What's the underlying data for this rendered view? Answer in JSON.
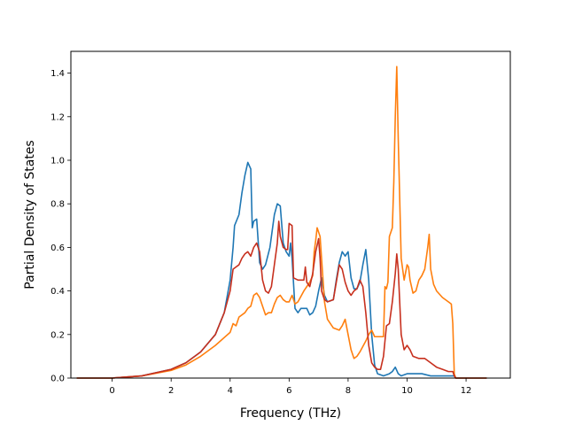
{
  "chart_data": {
    "type": "line",
    "title": "",
    "xlabel": "Frequency (THz)",
    "ylabel": "Partial Density of States",
    "xlim": [
      -1.4,
      13.5
    ],
    "ylim": [
      0.0,
      1.5
    ],
    "xticks": [
      0,
      2,
      4,
      6,
      8,
      10,
      12
    ],
    "yticks": [
      0.0,
      0.2,
      0.4,
      0.6,
      0.8,
      1.0,
      1.2,
      1.4
    ],
    "grid": false,
    "legend": "none",
    "series": [
      {
        "color": "#1f77b4",
        "points": [
          [
            -1.2,
            0
          ],
          [
            0,
            0
          ],
          [
            1,
            0.01
          ],
          [
            2,
            0.04
          ],
          [
            2.5,
            0.07
          ],
          [
            3,
            0.12
          ],
          [
            3.5,
            0.2
          ],
          [
            3.8,
            0.3
          ],
          [
            4.0,
            0.45
          ],
          [
            4.1,
            0.6
          ],
          [
            4.15,
            0.7
          ],
          [
            4.3,
            0.75
          ],
          [
            4.4,
            0.85
          ],
          [
            4.5,
            0.93
          ],
          [
            4.6,
            0.99
          ],
          [
            4.7,
            0.96
          ],
          [
            4.75,
            0.69
          ],
          [
            4.8,
            0.72
          ],
          [
            4.9,
            0.73
          ],
          [
            5.0,
            0.53
          ],
          [
            5.1,
            0.5
          ],
          [
            5.2,
            0.52
          ],
          [
            5.35,
            0.6
          ],
          [
            5.5,
            0.75
          ],
          [
            5.6,
            0.8
          ],
          [
            5.7,
            0.79
          ],
          [
            5.8,
            0.62
          ],
          [
            5.9,
            0.58
          ],
          [
            6.0,
            0.56
          ],
          [
            6.05,
            0.62
          ],
          [
            6.1,
            0.55
          ],
          [
            6.2,
            0.32
          ],
          [
            6.3,
            0.3
          ],
          [
            6.4,
            0.32
          ],
          [
            6.6,
            0.32
          ],
          [
            6.7,
            0.29
          ],
          [
            6.8,
            0.3
          ],
          [
            6.9,
            0.33
          ],
          [
            7.0,
            0.4
          ],
          [
            7.1,
            0.46
          ],
          [
            7.2,
            0.38
          ],
          [
            7.3,
            0.35
          ],
          [
            7.5,
            0.36
          ],
          [
            7.6,
            0.45
          ],
          [
            7.7,
            0.53
          ],
          [
            7.8,
            0.58
          ],
          [
            7.9,
            0.56
          ],
          [
            8.0,
            0.58
          ],
          [
            8.1,
            0.46
          ],
          [
            8.2,
            0.41
          ],
          [
            8.3,
            0.41
          ],
          [
            8.4,
            0.44
          ],
          [
            8.5,
            0.52
          ],
          [
            8.6,
            0.59
          ],
          [
            8.7,
            0.45
          ],
          [
            8.8,
            0.2
          ],
          [
            8.9,
            0.06
          ],
          [
            9.0,
            0.02
          ],
          [
            9.2,
            0.01
          ],
          [
            9.4,
            0.02
          ],
          [
            9.5,
            0.03
          ],
          [
            9.6,
            0.05
          ],
          [
            9.7,
            0.02
          ],
          [
            9.8,
            0.01
          ],
          [
            10.0,
            0.02
          ],
          [
            10.2,
            0.02
          ],
          [
            10.5,
            0.02
          ],
          [
            10.8,
            0.01
          ],
          [
            11.0,
            0.01
          ],
          [
            11.2,
            0.01
          ],
          [
            11.6,
            0.01
          ],
          [
            11.65,
            0
          ],
          [
            12.7,
            0
          ]
        ]
      },
      {
        "color": "#ff7f0e",
        "points": [
          [
            -1.2,
            0
          ],
          [
            0,
            0
          ],
          [
            1,
            0.01
          ],
          [
            2,
            0.035
          ],
          [
            2.5,
            0.06
          ],
          [
            3,
            0.1
          ],
          [
            3.5,
            0.15
          ],
          [
            4.0,
            0.21
          ],
          [
            4.1,
            0.25
          ],
          [
            4.2,
            0.24
          ],
          [
            4.3,
            0.28
          ],
          [
            4.5,
            0.3
          ],
          [
            4.6,
            0.32
          ],
          [
            4.7,
            0.33
          ],
          [
            4.8,
            0.38
          ],
          [
            4.9,
            0.39
          ],
          [
            5.0,
            0.37
          ],
          [
            5.1,
            0.33
          ],
          [
            5.2,
            0.29
          ],
          [
            5.3,
            0.3
          ],
          [
            5.4,
            0.3
          ],
          [
            5.5,
            0.34
          ],
          [
            5.6,
            0.37
          ],
          [
            5.7,
            0.38
          ],
          [
            5.8,
            0.36
          ],
          [
            5.9,
            0.35
          ],
          [
            6.0,
            0.35
          ],
          [
            6.1,
            0.38
          ],
          [
            6.2,
            0.34
          ],
          [
            6.3,
            0.35
          ],
          [
            6.5,
            0.4
          ],
          [
            6.7,
            0.44
          ],
          [
            6.8,
            0.47
          ],
          [
            6.85,
            0.58
          ],
          [
            6.9,
            0.63
          ],
          [
            6.95,
            0.69
          ],
          [
            7.05,
            0.65
          ],
          [
            7.1,
            0.55
          ],
          [
            7.2,
            0.35
          ],
          [
            7.3,
            0.27
          ],
          [
            7.5,
            0.23
          ],
          [
            7.7,
            0.22
          ],
          [
            7.8,
            0.24
          ],
          [
            7.9,
            0.27
          ],
          [
            8.0,
            0.2
          ],
          [
            8.1,
            0.13
          ],
          [
            8.2,
            0.09
          ],
          [
            8.3,
            0.1
          ],
          [
            8.4,
            0.12
          ],
          [
            8.6,
            0.17
          ],
          [
            8.7,
            0.2
          ],
          [
            8.8,
            0.22
          ],
          [
            8.9,
            0.19
          ],
          [
            9.0,
            0.19
          ],
          [
            9.1,
            0.19
          ],
          [
            9.2,
            0.19
          ],
          [
            9.25,
            0.42
          ],
          [
            9.3,
            0.41
          ],
          [
            9.35,
            0.44
          ],
          [
            9.4,
            0.65
          ],
          [
            9.5,
            0.69
          ],
          [
            9.55,
            0.9
          ],
          [
            9.6,
            1.2
          ],
          [
            9.65,
            1.43
          ],
          [
            9.7,
            1.1
          ],
          [
            9.8,
            0.55
          ],
          [
            9.9,
            0.45
          ],
          [
            10.0,
            0.52
          ],
          [
            10.05,
            0.51
          ],
          [
            10.1,
            0.45
          ],
          [
            10.2,
            0.39
          ],
          [
            10.3,
            0.4
          ],
          [
            10.4,
            0.45
          ],
          [
            10.5,
            0.47
          ],
          [
            10.6,
            0.5
          ],
          [
            10.7,
            0.6
          ],
          [
            10.75,
            0.66
          ],
          [
            10.8,
            0.5
          ],
          [
            10.9,
            0.43
          ],
          [
            11.0,
            0.4
          ],
          [
            11.2,
            0.37
          ],
          [
            11.4,
            0.35
          ],
          [
            11.5,
            0.34
          ],
          [
            11.55,
            0.25
          ],
          [
            11.6,
            0.02
          ],
          [
            11.65,
            0
          ],
          [
            12.7,
            0
          ]
        ]
      },
      {
        "color": "#c7301e",
        "points": [
          [
            -1.2,
            0
          ],
          [
            0,
            0
          ],
          [
            1,
            0.01
          ],
          [
            2,
            0.04
          ],
          [
            2.5,
            0.07
          ],
          [
            3,
            0.12
          ],
          [
            3.5,
            0.2
          ],
          [
            3.8,
            0.3
          ],
          [
            4.0,
            0.4
          ],
          [
            4.1,
            0.5
          ],
          [
            4.2,
            0.51
          ],
          [
            4.3,
            0.52
          ],
          [
            4.4,
            0.55
          ],
          [
            4.5,
            0.57
          ],
          [
            4.6,
            0.58
          ],
          [
            4.7,
            0.56
          ],
          [
            4.8,
            0.6
          ],
          [
            4.9,
            0.62
          ],
          [
            5.0,
            0.58
          ],
          [
            5.1,
            0.45
          ],
          [
            5.2,
            0.4
          ],
          [
            5.3,
            0.39
          ],
          [
            5.4,
            0.42
          ],
          [
            5.5,
            0.52
          ],
          [
            5.6,
            0.62
          ],
          [
            5.65,
            0.72
          ],
          [
            5.7,
            0.65
          ],
          [
            5.8,
            0.6
          ],
          [
            5.9,
            0.59
          ],
          [
            5.95,
            0.59
          ],
          [
            6.0,
            0.71
          ],
          [
            6.1,
            0.7
          ],
          [
            6.15,
            0.46
          ],
          [
            6.3,
            0.45
          ],
          [
            6.5,
            0.45
          ],
          [
            6.55,
            0.51
          ],
          [
            6.6,
            0.44
          ],
          [
            6.7,
            0.42
          ],
          [
            6.8,
            0.48
          ],
          [
            6.9,
            0.58
          ],
          [
            7.0,
            0.64
          ],
          [
            7.05,
            0.55
          ],
          [
            7.1,
            0.4
          ],
          [
            7.2,
            0.36
          ],
          [
            7.3,
            0.35
          ],
          [
            7.5,
            0.36
          ],
          [
            7.6,
            0.44
          ],
          [
            7.7,
            0.52
          ],
          [
            7.8,
            0.5
          ],
          [
            7.9,
            0.44
          ],
          [
            8.0,
            0.4
          ],
          [
            8.1,
            0.38
          ],
          [
            8.2,
            0.4
          ],
          [
            8.3,
            0.41
          ],
          [
            8.4,
            0.45
          ],
          [
            8.5,
            0.42
          ],
          [
            8.6,
            0.3
          ],
          [
            8.7,
            0.15
          ],
          [
            8.8,
            0.07
          ],
          [
            8.9,
            0.05
          ],
          [
            9.0,
            0.04
          ],
          [
            9.1,
            0.04
          ],
          [
            9.2,
            0.1
          ],
          [
            9.3,
            0.24
          ],
          [
            9.4,
            0.25
          ],
          [
            9.5,
            0.35
          ],
          [
            9.6,
            0.48
          ],
          [
            9.65,
            0.57
          ],
          [
            9.7,
            0.5
          ],
          [
            9.8,
            0.2
          ],
          [
            9.9,
            0.13
          ],
          [
            10.0,
            0.15
          ],
          [
            10.1,
            0.13
          ],
          [
            10.2,
            0.1
          ],
          [
            10.4,
            0.09
          ],
          [
            10.6,
            0.09
          ],
          [
            10.8,
            0.07
          ],
          [
            11.0,
            0.05
          ],
          [
            11.2,
            0.04
          ],
          [
            11.4,
            0.03
          ],
          [
            11.55,
            0.03
          ],
          [
            11.6,
            0.01
          ],
          [
            11.65,
            0
          ],
          [
            12.7,
            0
          ]
        ]
      }
    ]
  }
}
